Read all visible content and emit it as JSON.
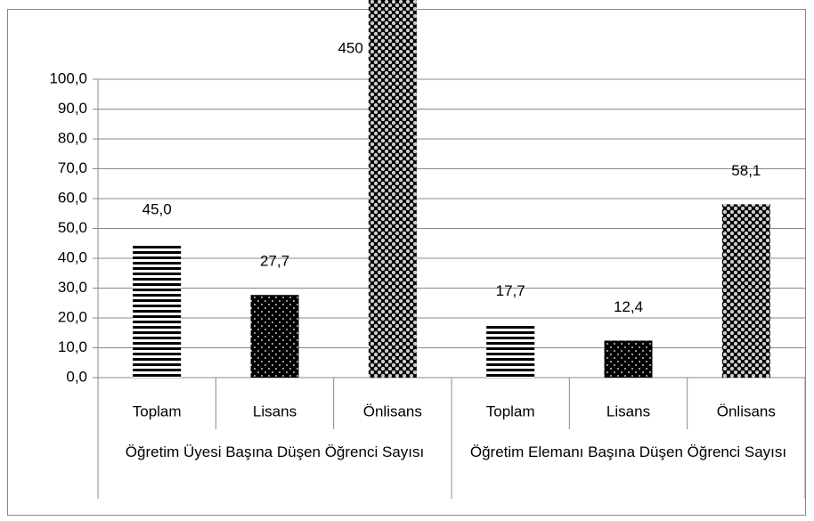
{
  "chart_data": {
    "type": "bar",
    "categories": [
      "Toplam",
      "Lisans",
      "Önlisans",
      "Toplam",
      "Lisans",
      "Önlisans"
    ],
    "groups": [
      {
        "label": "Öğretim Üyesi Başına Düşen Öğrenci Sayısı",
        "size": 3
      },
      {
        "label": "Öğretim Elemanı Başına Düşen Öğrenci Sayısı",
        "size": 3
      }
    ],
    "values": [
      45.0,
      27.7,
      450,
      17.7,
      12.4,
      58.1
    ],
    "value_labels": [
      "45,0",
      "27,7",
      "450",
      "17,7",
      "12,4",
      "58,1"
    ],
    "patterns": [
      "stripes",
      "dots",
      "balls",
      "stripes",
      "dots",
      "balls"
    ],
    "ylim": [
      0,
      100
    ],
    "yticks": [
      {
        "value": 0,
        "label": "0,0"
      },
      {
        "value": 10,
        "label": "10,0"
      },
      {
        "value": 20,
        "label": "20,0"
      },
      {
        "value": 30,
        "label": "30,0"
      },
      {
        "value": 40,
        "label": "40,0"
      },
      {
        "value": 50,
        "label": "50,0"
      },
      {
        "value": 60,
        "label": "60,0"
      },
      {
        "value": 70,
        "label": "70,0"
      },
      {
        "value": 80,
        "label": "80,0"
      },
      {
        "value": 90,
        "label": "90,0"
      },
      {
        "value": 100,
        "label": "100,0"
      }
    ],
    "grid": true
  }
}
